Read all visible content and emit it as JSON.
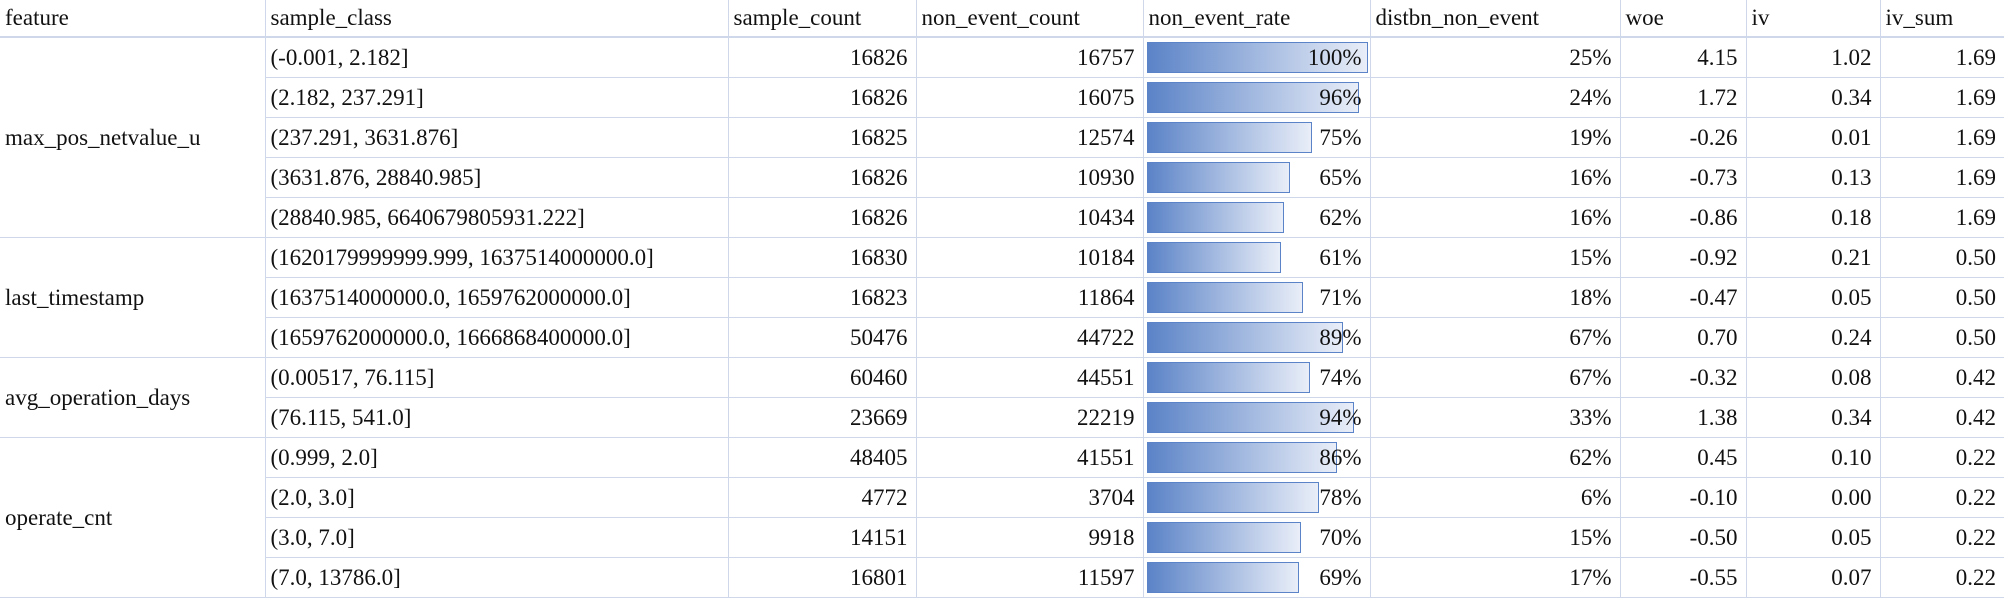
{
  "table": {
    "columns": [
      "feature",
      "sample_class",
      "sample_count",
      "non_event_count",
      "non_event_rate",
      "distbn_non_event",
      "woe",
      "iv",
      "iv_sum"
    ],
    "groups": [
      {
        "feature": "max_pos_netvalue_u",
        "rows": [
          [
            "(-0.001, 2.182]",
            16826,
            16757,
            {
              "value": 100,
              "label": "100%"
            },
            "25%",
            "4.15",
            "1.02",
            "1.69"
          ],
          [
            "(2.182, 237.291]",
            16826,
            16075,
            {
              "value": 96,
              "label": "96%"
            },
            "24%",
            "1.72",
            "0.34",
            "1.69"
          ],
          [
            "(237.291, 3631.876]",
            16825,
            12574,
            {
              "value": 75,
              "label": "75%"
            },
            "19%",
            "-0.26",
            "0.01",
            "1.69"
          ],
          [
            "(3631.876, 28840.985]",
            16826,
            10930,
            {
              "value": 65,
              "label": "65%"
            },
            "16%",
            "-0.73",
            "0.13",
            "1.69"
          ],
          [
            "(28840.985, 6640679805931.222]",
            16826,
            10434,
            {
              "value": 62,
              "label": "62%"
            },
            "16%",
            "-0.86",
            "0.18",
            "1.69"
          ]
        ]
      },
      {
        "feature": "last_timestamp",
        "rows": [
          [
            "(1620179999999.999, 1637514000000.0]",
            16830,
            10184,
            {
              "value": 61,
              "label": "61%"
            },
            "15%",
            "-0.92",
            "0.21",
            "0.50"
          ],
          [
            "(1637514000000.0, 1659762000000.0]",
            16823,
            11864,
            {
              "value": 71,
              "label": "71%"
            },
            "18%",
            "-0.47",
            "0.05",
            "0.50"
          ],
          [
            "(1659762000000.0, 1666868400000.0]",
            50476,
            44722,
            {
              "value": 89,
              "label": "89%"
            },
            "67%",
            "0.70",
            "0.24",
            "0.50"
          ]
        ]
      },
      {
        "feature": "avg_operation_days",
        "rows": [
          [
            "(0.00517, 76.115]",
            60460,
            44551,
            {
              "value": 74,
              "label": "74%"
            },
            "67%",
            "-0.32",
            "0.08",
            "0.42"
          ],
          [
            "(76.115, 541.0]",
            23669,
            22219,
            {
              "value": 94,
              "label": "94%"
            },
            "33%",
            "1.38",
            "0.34",
            "0.42"
          ]
        ]
      },
      {
        "feature": "operate_cnt",
        "rows": [
          [
            "(0.999, 2.0]",
            48405,
            41551,
            {
              "value": 86,
              "label": "86%"
            },
            "62%",
            "0.45",
            "0.10",
            "0.22"
          ],
          [
            "(2.0, 3.0]",
            4772,
            3704,
            {
              "value": 78,
              "label": "78%"
            },
            "6%",
            "-0.10",
            "0.00",
            "0.22"
          ],
          [
            "(3.0, 7.0]",
            14151,
            9918,
            {
              "value": 70,
              "label": "70%"
            },
            "15%",
            "-0.50",
            "0.05",
            "0.22"
          ],
          [
            "(7.0, 13786.0]",
            16801,
            11597,
            {
              "value": 69,
              "label": "69%"
            },
            "17%",
            "-0.55",
            "0.07",
            "0.22"
          ]
        ]
      }
    ]
  }
}
